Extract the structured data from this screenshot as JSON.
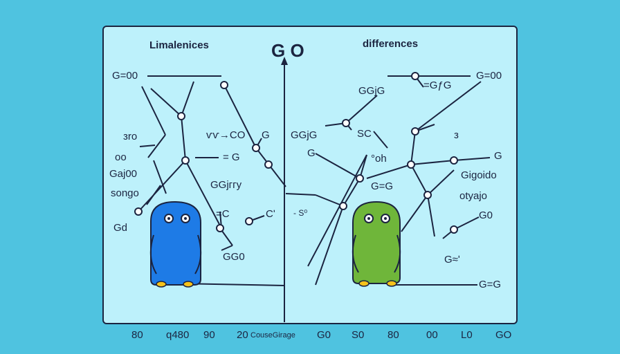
{
  "diagram": {
    "title_center": "G O",
    "title_left": "Limalenices",
    "title_right": "differences",
    "left_labels": [
      "G=00",
      "зro",
      "oo",
      "Gaj00",
      "songo",
      "Gd",
      "ѵѵ→CO",
      "G",
      "= G",
      "GGjггу",
      "=C",
      "Cʹ",
      "GG0"
    ],
    "right_labels": [
      "G=00",
      "GGjG",
      "=GƒG",
      "GGjG",
      "SC",
      "з",
      "G",
      "G",
      "°oh",
      "G=G",
      "Gigoido",
      "otyajo",
      "G0",
      "G≈ʹ",
      "G=G",
      "- S⁰"
    ],
    "bottom_labels": [
      "80",
      "q480",
      "90",
      "20",
      "CouseGirage",
      "G0",
      "S0",
      "80",
      "00",
      "L0",
      "GO"
    ],
    "colors": {
      "background": "#4fc3e0",
      "panel": "#bdf1fb",
      "ink": "#1b2440",
      "character_blue": "#1e7be6",
      "character_green": "#6fb63a"
    }
  }
}
